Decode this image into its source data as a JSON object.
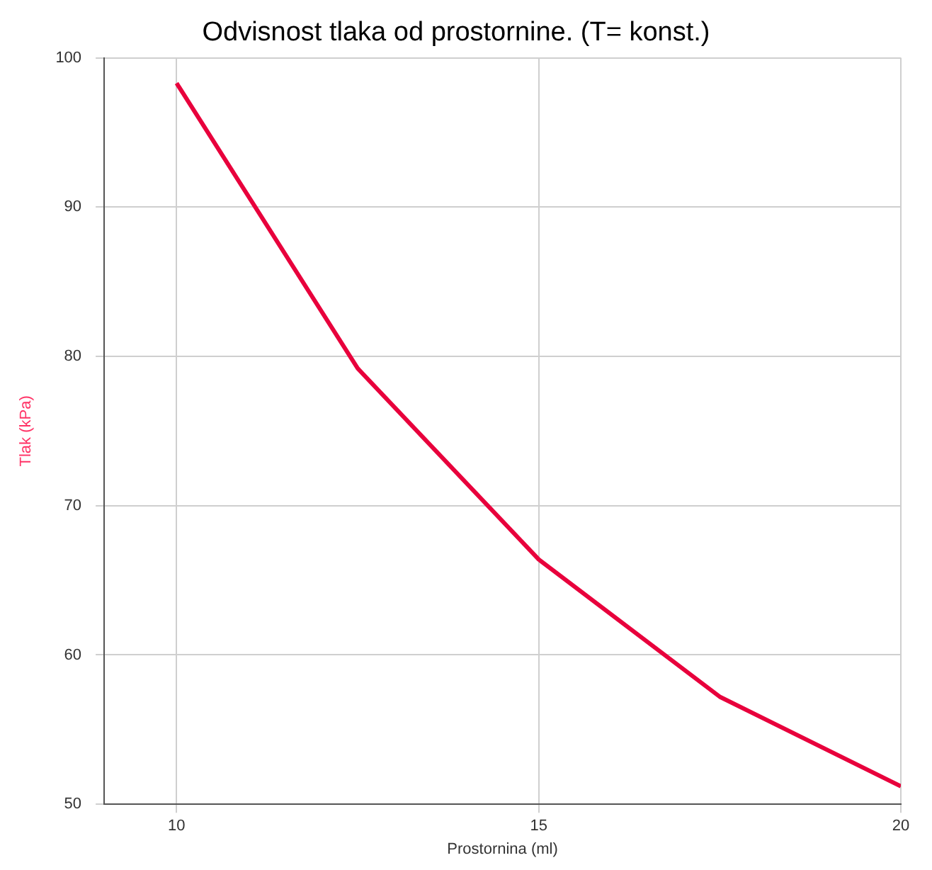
{
  "chart_data": {
    "type": "line",
    "title": "Odvisnost tlaka od prostornine. (T= konst.)",
    "xlabel": "Prostornina (ml)",
    "ylabel": "Tlak (kPa)",
    "x": [
      10,
      12.5,
      15,
      17.5,
      20
    ],
    "series": [
      {
        "color": "#e8003c",
        "values": [
          98.3,
          79.2,
          66.4,
          57.2,
          51.2
        ]
      }
    ],
    "xlim": [
      9,
      20
    ],
    "xticks": [
      10,
      15,
      20
    ],
    "ylim": [
      50,
      100
    ],
    "yticks": [
      50,
      60,
      70,
      80,
      90,
      100
    ],
    "grid": true,
    "legend": false,
    "marker": "none",
    "line_style": "solid"
  }
}
